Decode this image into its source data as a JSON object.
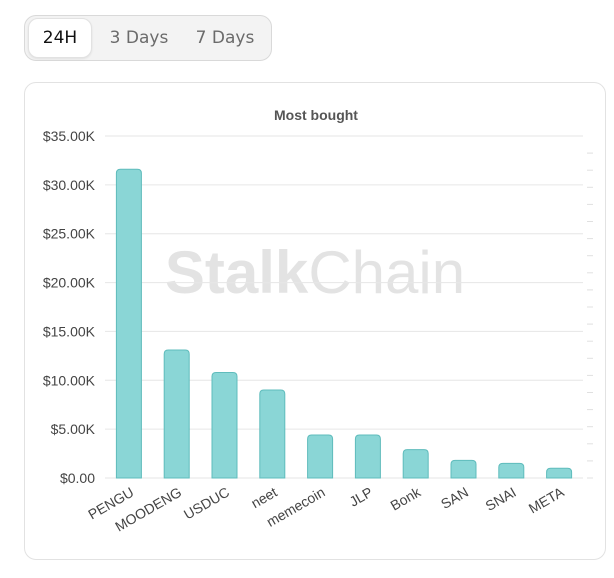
{
  "tabs": [
    {
      "label": "24H",
      "active": true
    },
    {
      "label": "3 Days",
      "active": false
    },
    {
      "label": "7 Days",
      "active": false
    }
  ],
  "watermark": {
    "bold": "Stalk",
    "light": "Chain"
  },
  "colors": {
    "bar_fill": "#8ad6d6",
    "bar_stroke": "#5fbcbc",
    "grid": "#e6e6e6",
    "axis_text": "#444444",
    "title_text": "#555555"
  },
  "chart_data": {
    "type": "bar",
    "title": "Most bought",
    "xlabel": "",
    "ylabel": "",
    "categories": [
      "PENGU",
      "MOODENG",
      "USDUC",
      "neet",
      "memecoin",
      "JLP",
      "Bonk",
      "SAN",
      "SNAI",
      "META"
    ],
    "values": [
      31600,
      13100,
      10800,
      9000,
      4400,
      4400,
      2900,
      1800,
      1500,
      1000
    ],
    "ylim": [
      0,
      35000
    ],
    "yticks": [
      0,
      5000,
      10000,
      15000,
      20000,
      25000,
      30000,
      35000
    ],
    "ytick_labels": [
      "$0.00",
      "$5.00K",
      "$10.00K",
      "$15.00K",
      "$20.00K",
      "$25.00K",
      "$30.00K",
      "$35.00K"
    ],
    "grid": true,
    "legend": "none"
  }
}
